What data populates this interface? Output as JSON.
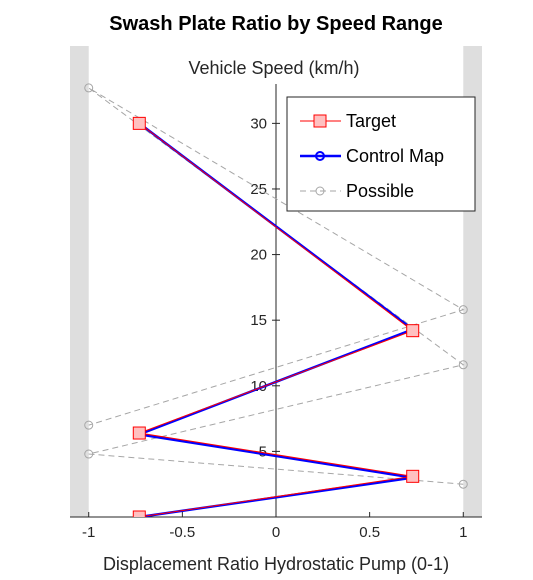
{
  "chart_data": {
    "type": "line",
    "title": "Swash Plate Ratio by Speed Range",
    "xlabel": "Displacement Ratio Hydrostatic Pump (0-1)",
    "ylabel": "Vehicle Speed (km/h)",
    "xlim": [
      -1.1,
      1.1
    ],
    "ylim": [
      0,
      33
    ],
    "x_ticks": [
      -1,
      -0.5,
      0,
      0.5,
      1
    ],
    "x_tick_labels": [
      "-1",
      "-0.5",
      "0",
      "0.5",
      "1"
    ],
    "y_ticks": [
      5,
      10,
      15,
      20,
      25,
      30
    ],
    "y_tick_labels": [
      "5",
      "10",
      "15",
      "20",
      "25",
      "30"
    ],
    "shaded_x_bands": [
      [
        -1.1,
        -1.0
      ],
      [
        1.0,
        1.1
      ]
    ],
    "legend_position": "top-right",
    "series": [
      {
        "name": "Target",
        "marker": "square",
        "color": "#ff0000",
        "marker_fill": "#ffc0c0",
        "x": [
          -0.73,
          0.73,
          -0.73,
          0.73,
          -0.73
        ],
        "y": [
          0,
          3.1,
          6.4,
          14.2,
          30.0
        ]
      },
      {
        "name": "Control Map",
        "marker": "circle",
        "color": "#0000ff",
        "x": [
          -0.73,
          0.73,
          -0.73,
          0.73,
          -0.73
        ],
        "y": [
          0,
          3.0,
          6.3,
          14.3,
          30.0
        ]
      },
      {
        "name": "Possible",
        "marker": "circle",
        "color": "#a6a6a6",
        "dashed": true,
        "x": [
          1.0,
          -1.0,
          1.0,
          -1.0,
          1.0,
          -1.0
        ],
        "y": [
          2.5,
          4.8,
          11.6,
          32.7,
          15.8,
          7.0
        ]
      }
    ]
  }
}
